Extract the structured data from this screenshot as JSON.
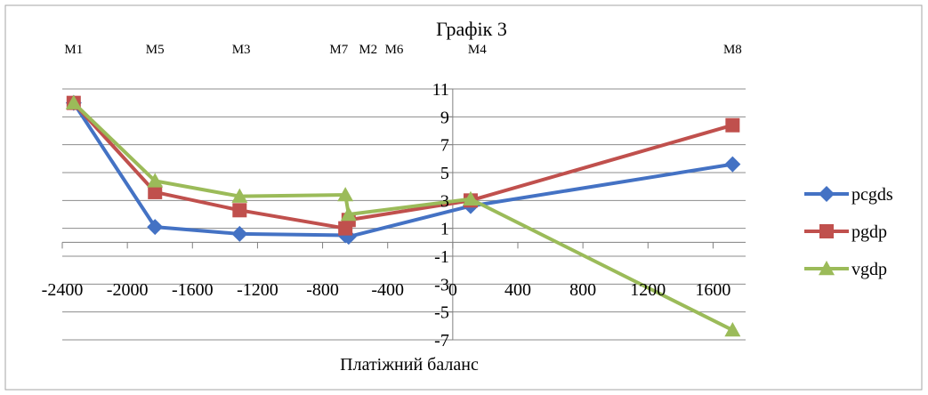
{
  "chart_data": {
    "type": "line",
    "title": "Графік 3",
    "xlabel": "Платіжний баланс",
    "ylabel": "",
    "xlim": [
      -2400,
      1800
    ],
    "ylim": [
      -7,
      11
    ],
    "xticks": [
      -2400,
      -2000,
      -1600,
      -1200,
      -800,
      -400,
      0,
      400,
      800,
      1200,
      1600
    ],
    "yticks": [
      11,
      9,
      7,
      5,
      3,
      1,
      -1,
      -3,
      -5,
      -7
    ],
    "grid": "horizontal",
    "legend_position": "right",
    "point_labels": [
      {
        "text": "M1",
        "x": -2330
      },
      {
        "text": "M5",
        "x": -1830
      },
      {
        "text": "M3",
        "x": -1300
      },
      {
        "text": "M7",
        "x": -700
      },
      {
        "text": "M2",
        "x": -520
      },
      {
        "text": "M6",
        "x": -360
      },
      {
        "text": "M4",
        "x": 150
      },
      {
        "text": "M8",
        "x": 1720
      }
    ],
    "series": [
      {
        "name": "pcgds",
        "color": "#4472c4",
        "marker": "diamond",
        "x": [
          -2330,
          -1830,
          -1310,
          -660,
          -640,
          110,
          1720
        ],
        "y": [
          10,
          1.1,
          0.6,
          0.5,
          0.4,
          2.6,
          5.6
        ]
      },
      {
        "name": "pgdp",
        "color": "#c0504d",
        "marker": "square",
        "x": [
          -2330,
          -1830,
          -1310,
          -660,
          -640,
          110,
          1720
        ],
        "y": [
          10,
          3.6,
          2.3,
          1,
          1.6,
          3,
          8.4
        ]
      },
      {
        "name": "vgdp",
        "color": "#9bbb59",
        "marker": "triangle",
        "x": [
          -2330,
          -1830,
          -1310,
          -660,
          -640,
          110,
          1720
        ],
        "y": [
          10,
          4.4,
          3.3,
          3.4,
          2,
          3.1,
          -6.3
        ]
      }
    ]
  }
}
